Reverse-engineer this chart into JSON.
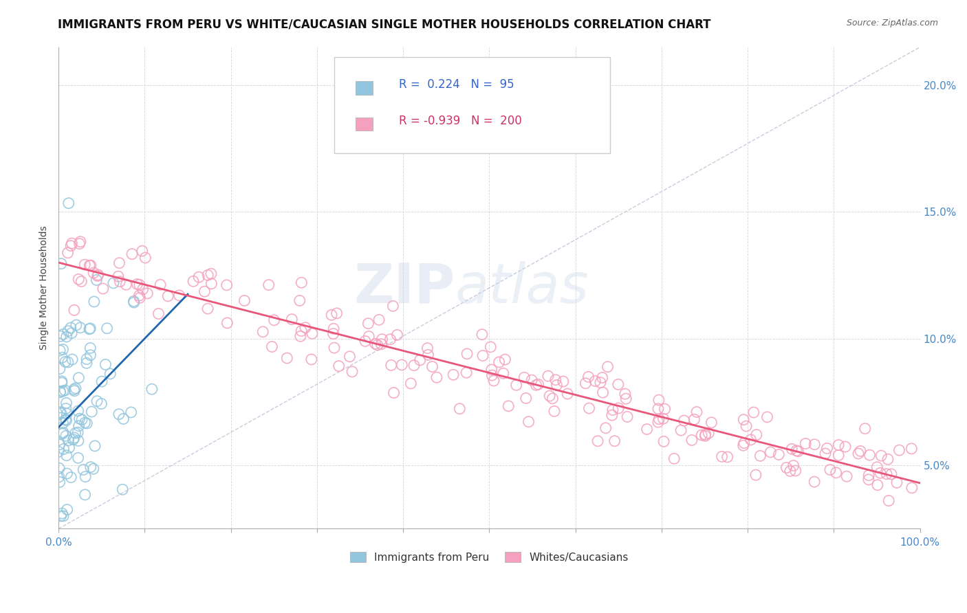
{
  "title": "IMMIGRANTS FROM PERU VS WHITE/CAUCASIAN SINGLE MOTHER HOUSEHOLDS CORRELATION CHART",
  "source": "Source: ZipAtlas.com",
  "ylabel": "Single Mother Households",
  "legend_label1": "Immigrants from Peru",
  "legend_label2": "Whites/Caucasians",
  "r1": 0.224,
  "n1": 95,
  "r2": -0.939,
  "n2": 200,
  "color1": "#92c5de",
  "color2": "#f4a0be",
  "trendline1_color": "#2166ac",
  "trendline2_color": "#e8567a",
  "ref_line_color": "#b0b8d0",
  "background_color": "#ffffff",
  "grid_color": "#cccccc",
  "xlim": [
    0.0,
    1.0
  ],
  "ylim": [
    0.025,
    0.215
  ],
  "seed": 42,
  "watermark_zip": "ZIP",
  "watermark_atlas": "atlas",
  "title_fontsize": 12,
  "axis_fontsize": 11,
  "ytick_color": "#4488cc",
  "xtick_labels_color": "#4488cc"
}
